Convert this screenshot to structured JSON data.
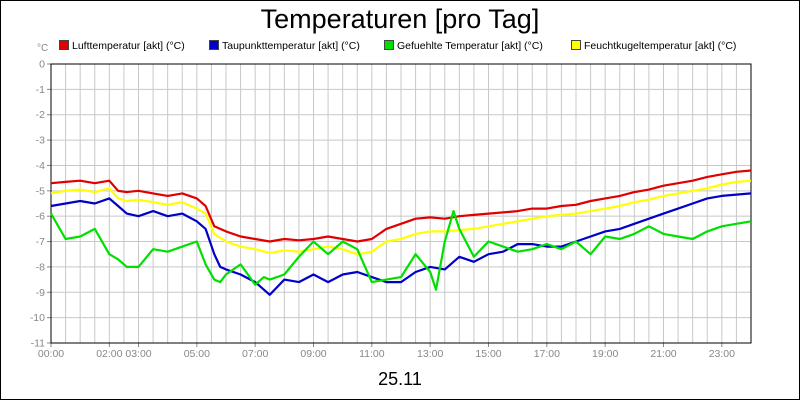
{
  "chart_data": {
    "type": "line",
    "title": "Temperaturen [pro Tag]",
    "ylabel": "°C",
    "xlabel": "25.11",
    "ylim": [
      -11,
      0
    ],
    "yticks": [
      "0",
      "-1",
      "-2",
      "-3",
      "-4",
      "-5",
      "-6",
      "-7",
      "-8",
      "-9",
      "-10",
      "-11"
    ],
    "xticks": [
      {
        "h": 0,
        "label": "00:00"
      },
      {
        "h": 2,
        "label": "02:00"
      },
      {
        "h": 3,
        "label": "03:00"
      },
      {
        "h": 5,
        "label": "05:00"
      },
      {
        "h": 7,
        "label": "07:00"
      },
      {
        "h": 9,
        "label": "09:00"
      },
      {
        "h": 11,
        "label": "11:00"
      },
      {
        "h": 13,
        "label": "13:00"
      },
      {
        "h": 15,
        "label": "15:00"
      },
      {
        "h": 17,
        "label": "17:00"
      },
      {
        "h": 19,
        "label": "19:00"
      },
      {
        "h": 21,
        "label": "21:00"
      },
      {
        "h": 23,
        "label": "23:00"
      }
    ],
    "grid": true,
    "legend_position": "top",
    "series": [
      {
        "name": "Lufttemperatur [akt] (°C)",
        "color": "#e00000",
        "x": [
          0,
          0.5,
          1,
          1.5,
          2,
          2.3,
          2.6,
          3,
          3.5,
          4,
          4.5,
          5,
          5.3,
          5.6,
          6,
          6.5,
          7,
          7.5,
          8,
          8.5,
          9,
          9.5,
          10,
          10.5,
          11,
          11.5,
          12,
          12.5,
          13,
          13.5,
          14,
          14.5,
          15,
          15.5,
          16,
          16.5,
          17,
          17.5,
          18,
          18.5,
          19,
          19.5,
          20,
          20.5,
          21,
          21.5,
          22,
          22.5,
          23,
          23.5,
          24
        ],
        "y": [
          -4.7,
          -4.65,
          -4.6,
          -4.7,
          -4.6,
          -5.0,
          -5.05,
          -5.0,
          -5.1,
          -5.2,
          -5.1,
          -5.3,
          -5.6,
          -6.4,
          -6.6,
          -6.8,
          -6.9,
          -7.0,
          -6.9,
          -6.95,
          -6.9,
          -6.8,
          -6.9,
          -7.0,
          -6.9,
          -6.5,
          -6.3,
          -6.1,
          -6.05,
          -6.1,
          -6.0,
          -5.95,
          -5.9,
          -5.85,
          -5.8,
          -5.7,
          -5.7,
          -5.6,
          -5.55,
          -5.4,
          -5.3,
          -5.2,
          -5.05,
          -4.95,
          -4.8,
          -4.7,
          -4.6,
          -4.45,
          -4.35,
          -4.25,
          -4.2
        ]
      },
      {
        "name": "Taupunkttemperatur [akt] (°C)",
        "color": "#0000c8",
        "x": [
          0,
          0.5,
          1,
          1.5,
          2,
          2.3,
          2.6,
          3,
          3.5,
          4,
          4.5,
          5,
          5.3,
          5.6,
          5.8,
          6,
          6.5,
          7,
          7.3,
          7.5,
          8,
          8.5,
          9,
          9.5,
          10,
          10.5,
          11,
          11.5,
          12,
          12.5,
          13,
          13.5,
          14,
          14.5,
          15,
          15.5,
          16,
          16.5,
          17,
          17.5,
          18,
          18.5,
          19,
          19.5,
          20,
          20.5,
          21,
          21.5,
          22,
          22.5,
          23,
          23.5,
          24
        ],
        "y": [
          -5.6,
          -5.5,
          -5.4,
          -5.5,
          -5.3,
          -5.6,
          -5.9,
          -6.0,
          -5.8,
          -6.0,
          -5.9,
          -6.2,
          -6.5,
          -7.5,
          -8.0,
          -8.1,
          -8.3,
          -8.6,
          -8.9,
          -9.1,
          -8.5,
          -8.6,
          -8.3,
          -8.6,
          -8.3,
          -8.2,
          -8.4,
          -8.6,
          -8.6,
          -8.2,
          -8.0,
          -8.1,
          -7.6,
          -7.8,
          -7.5,
          -7.4,
          -7.1,
          -7.1,
          -7.2,
          -7.2,
          -7.0,
          -6.8,
          -6.6,
          -6.5,
          -6.3,
          -6.1,
          -5.9,
          -5.7,
          -5.5,
          -5.3,
          -5.2,
          -5.15,
          -5.1
        ]
      },
      {
        "name": "Gefuehlte Temperatur [akt] (°C)",
        "color": "#00e000",
        "x": [
          0,
          0.5,
          1,
          1.5,
          2,
          2.3,
          2.6,
          3,
          3.5,
          4,
          4.5,
          5,
          5.3,
          5.6,
          5.8,
          6,
          6.5,
          7,
          7.3,
          7.5,
          8,
          8.5,
          9,
          9.5,
          10,
          10.5,
          11,
          11.5,
          12,
          12.5,
          13,
          13.2,
          13.5,
          13.8,
          14,
          14.5,
          15,
          15.5,
          16,
          16.5,
          17,
          17.5,
          18,
          18.5,
          19,
          19.5,
          20,
          20.5,
          21,
          21.5,
          22,
          22.5,
          23,
          23.5,
          24
        ],
        "y": [
          -5.9,
          -6.9,
          -6.8,
          -6.5,
          -7.5,
          -7.7,
          -8.0,
          -8.0,
          -7.3,
          -7.4,
          -7.2,
          -7.0,
          -7.9,
          -8.5,
          -8.6,
          -8.3,
          -7.9,
          -8.7,
          -8.4,
          -8.5,
          -8.3,
          -7.6,
          -7.0,
          -7.5,
          -7.0,
          -7.3,
          -8.6,
          -8.5,
          -8.4,
          -7.5,
          -8.2,
          -8.9,
          -7.0,
          -5.8,
          -6.5,
          -7.6,
          -7.0,
          -7.2,
          -7.4,
          -7.3,
          -7.1,
          -7.3,
          -7.0,
          -7.5,
          -6.8,
          -6.9,
          -6.7,
          -6.4,
          -6.7,
          -6.8,
          -6.9,
          -6.6,
          -6.4,
          -6.3,
          -6.2
        ]
      },
      {
        "name": "Feuchtkugeltemperatur [akt] (°C)",
        "color": "#ffff00",
        "x": [
          0,
          0.5,
          1,
          1.5,
          2,
          2.3,
          2.6,
          3,
          3.5,
          4,
          4.5,
          5,
          5.3,
          5.6,
          6,
          6.5,
          7,
          7.5,
          8,
          8.5,
          9,
          9.5,
          10,
          10.5,
          11,
          11.5,
          12,
          12.5,
          13,
          13.5,
          14,
          14.5,
          15,
          15.5,
          16,
          16.5,
          17,
          17.5,
          18,
          18.5,
          19,
          19.5,
          20,
          20.5,
          21,
          21.5,
          22,
          22.5,
          23,
          23.5,
          24
        ],
        "y": [
          -5.1,
          -5.0,
          -4.95,
          -5.05,
          -4.9,
          -5.3,
          -5.4,
          -5.35,
          -5.45,
          -5.55,
          -5.45,
          -5.7,
          -5.9,
          -6.7,
          -7.0,
          -7.2,
          -7.3,
          -7.45,
          -7.35,
          -7.4,
          -7.3,
          -7.2,
          -7.3,
          -7.5,
          -7.4,
          -7.0,
          -6.9,
          -6.7,
          -6.6,
          -6.6,
          -6.55,
          -6.5,
          -6.4,
          -6.3,
          -6.2,
          -6.1,
          -6.0,
          -5.95,
          -5.9,
          -5.8,
          -5.7,
          -5.6,
          -5.45,
          -5.35,
          -5.2,
          -5.1,
          -5.0,
          -4.9,
          -4.75,
          -4.65,
          -4.6
        ]
      }
    ],
    "axis_color": "#888888",
    "grid_color": "#c8c8c8"
  }
}
